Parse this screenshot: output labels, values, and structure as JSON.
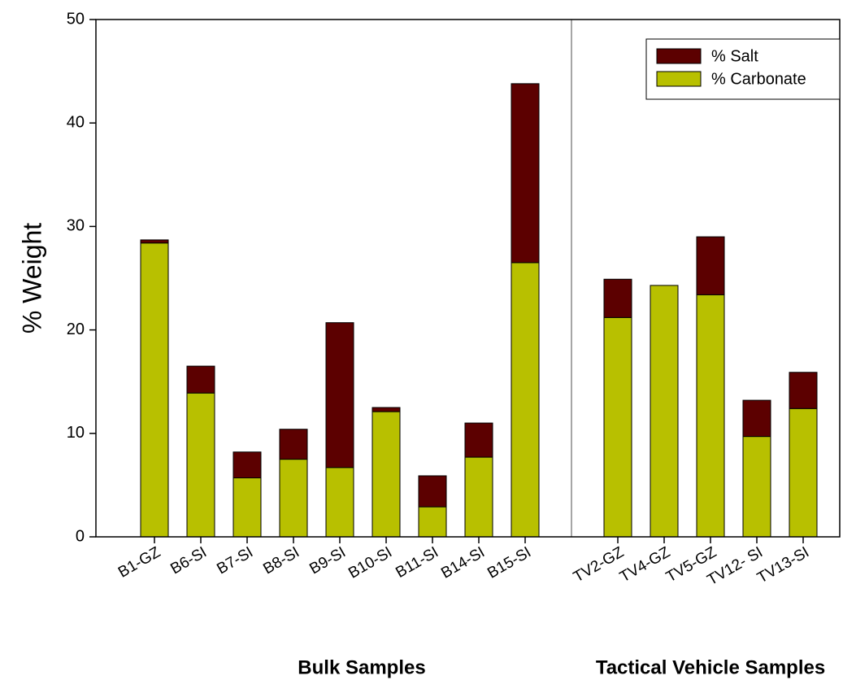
{
  "chart_data": {
    "type": "stacked_bar",
    "y_label": "% Weight",
    "categories": [
      "B1-GZ",
      "B6-SI",
      "B7-SI",
      "B8-SI",
      "B9-SI",
      "B10-SI",
      "B11-SI",
      "B14-SI",
      "B15-SI",
      null,
      "TV2-GZ",
      "TV4-GZ",
      "TV5-GZ",
      "TV12- SI",
      "TV13-SI"
    ],
    "series": [
      {
        "name": "% Carbonate",
        "color": "#b8c000",
        "values": [
          28.4,
          13.9,
          5.7,
          7.5,
          6.7,
          12.1,
          2.9,
          7.7,
          26.5,
          null,
          21.2,
          24.3,
          23.4,
          9.7,
          12.4
        ]
      },
      {
        "name": "% Salt",
        "color": "#5c0000",
        "values": [
          0.3,
          2.6,
          2.5,
          2.9,
          14.0,
          0.4,
          3.0,
          3.3,
          17.3,
          null,
          3.7,
          0,
          5.6,
          3.5,
          3.5
        ]
      }
    ],
    "group_labels": [
      "Bulk Samples",
      "Tactical Vehicle Samples"
    ],
    "ylim": [
      0,
      50
    ],
    "yticks": [
      0,
      10,
      20,
      30,
      40,
      50
    ],
    "legend": "top-right"
  }
}
